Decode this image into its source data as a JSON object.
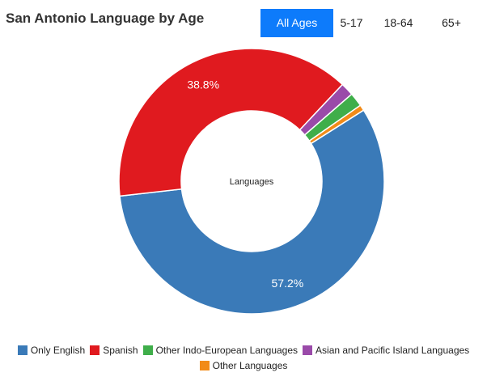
{
  "header": {
    "title": "San Antonio Language by Age"
  },
  "tabs": [
    {
      "label": "All Ages",
      "active": true
    },
    {
      "label": "5-17",
      "active": false
    },
    {
      "label": "18-64",
      "active": false
    },
    {
      "label": "65+",
      "active": false
    }
  ],
  "chart_data": {
    "type": "pie",
    "center_label": "Languages",
    "legend_position": "bottom",
    "series": [
      {
        "name": "Only English",
        "value": 57.2,
        "label": "57.2%",
        "color": "#3a7ab8"
      },
      {
        "name": "Spanish",
        "value": 38.8,
        "label": "38.8%",
        "color": "#e01a1f"
      },
      {
        "name": "Asian and Pacific Island Languages",
        "value": 1.6,
        "label": "",
        "color": "#9a4aa9"
      },
      {
        "name": "Other Indo-European Languages",
        "value": 1.7,
        "label": "",
        "color": "#3fae4a"
      },
      {
        "name": "Other Languages",
        "value": 0.7,
        "label": "",
        "color": "#f28b18"
      }
    ],
    "legend_order": [
      0,
      1,
      3,
      2,
      4
    ]
  }
}
